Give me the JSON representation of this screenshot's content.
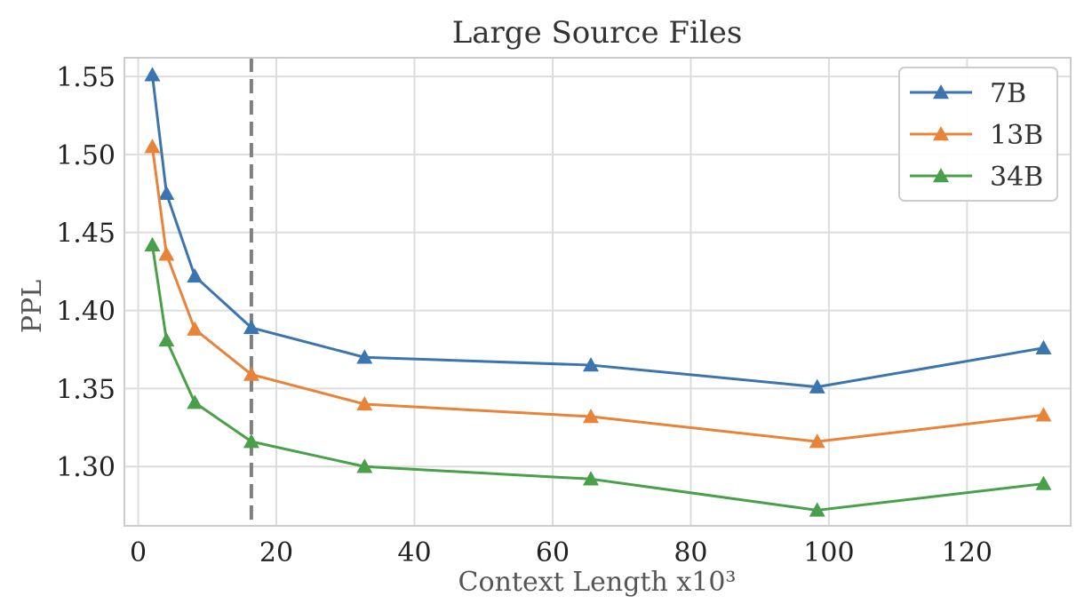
{
  "chart_data": {
    "type": "line",
    "title": "Large Source Files",
    "xlabel": "Context Length x10³",
    "ylabel": "PPL",
    "xlim": [
      -2,
      135
    ],
    "ylim": [
      1.262,
      1.562
    ],
    "xticks": [
      0,
      20,
      40,
      60,
      80,
      100,
      120
    ],
    "yticks": [
      1.3,
      1.35,
      1.4,
      1.45,
      1.5,
      1.55
    ],
    "xtick_labels": [
      "0",
      "20",
      "40",
      "60",
      "80",
      "100",
      "120"
    ],
    "ytick_labels": [
      "1.30",
      "1.35",
      "1.40",
      "1.45",
      "1.50",
      "1.55"
    ],
    "grid": true,
    "legend_position": "top-right",
    "marker": "triangle-up",
    "reference_line": {
      "x": 16.384,
      "style": "dashed",
      "color": "#808080"
    },
    "x": [
      2.048,
      4.096,
      8.192,
      16.384,
      32.768,
      65.536,
      98.304,
      131.072
    ],
    "series": [
      {
        "name": "7B",
        "color": "#3a75b0",
        "values": [
          1.551,
          1.475,
          1.422,
          1.389,
          1.37,
          1.365,
          1.351,
          1.376
        ]
      },
      {
        "name": "13B",
        "color": "#e8833a",
        "values": [
          1.505,
          1.436,
          1.388,
          1.359,
          1.34,
          1.332,
          1.316,
          1.333
        ]
      },
      {
        "name": "34B",
        "color": "#4aa04a",
        "values": [
          1.442,
          1.381,
          1.341,
          1.316,
          1.3,
          1.292,
          1.272,
          1.289
        ]
      }
    ]
  }
}
